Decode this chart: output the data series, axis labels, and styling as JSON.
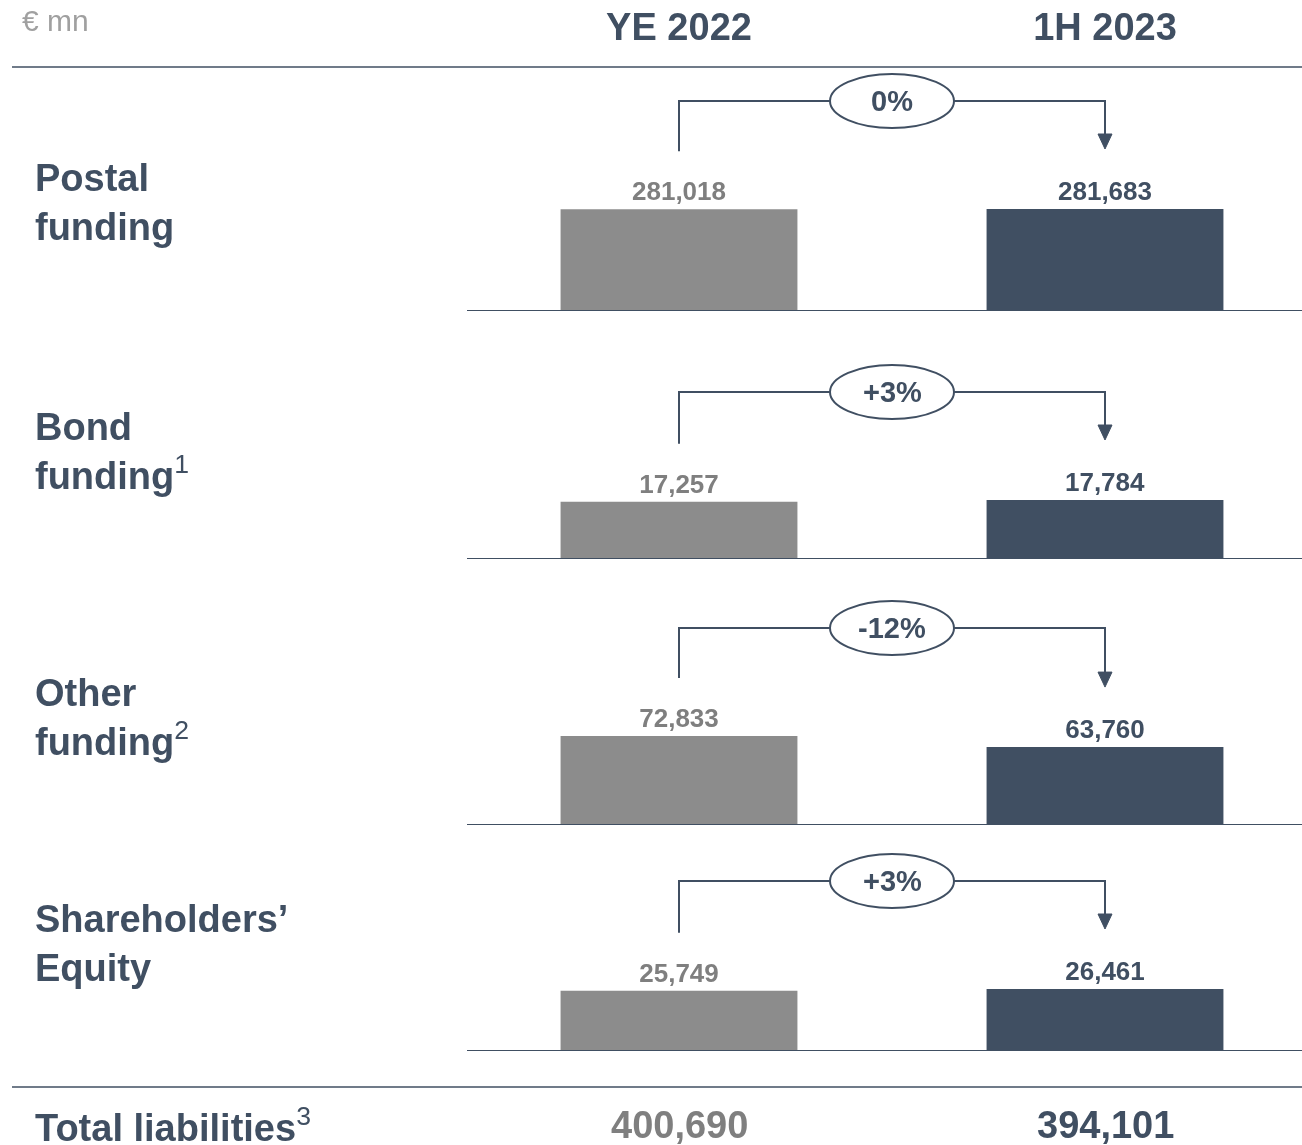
{
  "chart_data": [
    {
      "type": "bar",
      "ylabel": "Postal funding",
      "categories": [
        "YE 2022",
        "1H 2023"
      ],
      "values": [
        281018,
        281683
      ],
      "colors": [
        "#8c8c8c",
        "#404f62"
      ],
      "value_labels": [
        "281,018",
        "281,683"
      ],
      "tick_labels": "x",
      "annotations": [
        "€ mn",
        "0%"
      ]
    },
    {
      "type": "bar",
      "ylabel": "Bond funding$^{1}$",
      "categories": [
        null,
        null
      ],
      "values": [
        17257,
        17784
      ],
      "colors": [
        "#8c8c8c",
        "#404f62"
      ],
      "value_labels": [
        "17,257",
        "17,784"
      ],
      "tick_labels": false,
      "annotations": [
        "+3%"
      ]
    },
    {
      "type": "bar",
      "ylabel": "Other funding$^{2}$",
      "categories": [
        null,
        null
      ],
      "values": [
        72833,
        63760
      ],
      "colors": [
        "#8c8c8c",
        "#404f62"
      ],
      "value_labels": [
        "72,833",
        "63,760"
      ],
      "tick_labels": false,
      "annotations": [
        "-12%"
      ]
    },
    {
      "type": "bar",
      "ylabel": "Shareholders’ Equity",
      "categories": [
        null,
        null
      ],
      "values": [
        25749,
        26461
      ],
      "colors": [
        "#8c8c8c",
        "#404f62"
      ],
      "value_labels": [
        "25,749",
        "26,461"
      ],
      "tick_labels": false,
      "annotations": [
        "+3%",
        "Total liabilities$^{3}$",
        "400,690",
        "394,101"
      ]
    }
  ]
}
